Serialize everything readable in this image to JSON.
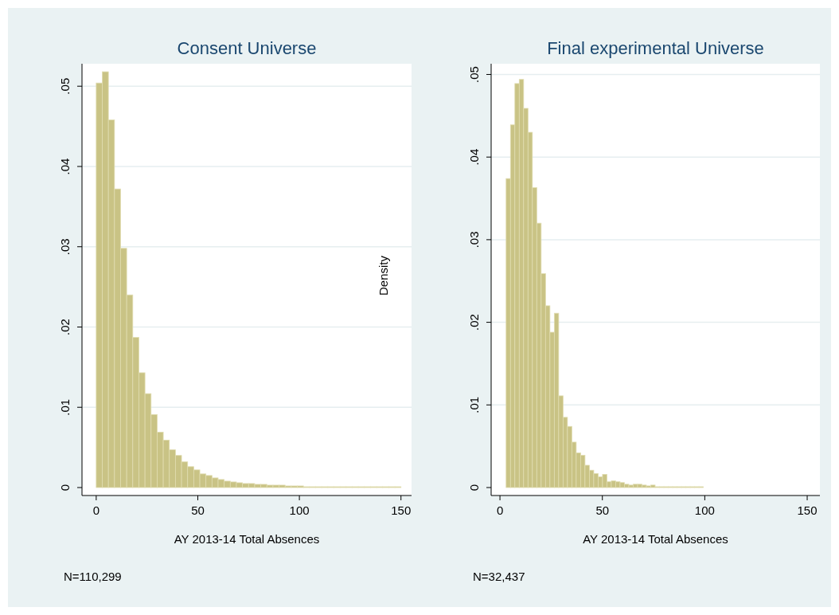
{
  "chart_data": [
    {
      "type": "histogram",
      "title": "Consent Universe",
      "xlabel": "AY 2013-14 Total Absences",
      "color": "#c9c385",
      "bins": [
        0,
        3,
        6,
        9,
        12,
        15,
        18,
        21,
        24,
        27,
        30,
        33,
        36,
        39,
        42,
        45,
        48,
        51,
        54,
        57,
        60,
        63,
        66,
        69,
        72,
        75,
        78,
        81,
        84,
        87,
        90,
        93,
        96,
        99,
        102,
        105,
        108,
        111,
        114,
        117,
        120,
        123,
        126,
        129,
        132,
        135,
        138,
        141,
        144,
        147,
        150
      ],
      "values": [
        0.0504,
        0.0518,
        0.0458,
        0.0372,
        0.0298,
        0.024,
        0.0187,
        0.0143,
        0.0117,
        0.0091,
        0.0069,
        0.0059,
        0.0047,
        0.004,
        0.0032,
        0.0026,
        0.0022,
        0.0017,
        0.0015,
        0.0012,
        0.001,
        0.0008,
        0.0007,
        0.0006,
        0.0005,
        0.0005,
        0.0004,
        0.0004,
        0.0003,
        0.0003,
        0.0003,
        0.0002,
        0.0002,
        0.0002,
        0.0001,
        0.0001,
        0.0001,
        0.0001,
        0.0001,
        0.0001,
        0.0001,
        0.0001,
        0.0001,
        0.0001,
        0.0001,
        0.0001,
        0.0001,
        0.0001,
        0.0001,
        0.0001
      ],
      "xlim": [
        -7,
        155.2
      ],
      "ylim": [
        0,
        0.0528
      ],
      "xticks": [
        0,
        50,
        100,
        150
      ],
      "yticks": [
        {
          "value": 0,
          "label": "0"
        },
        {
          "value": 0.01,
          "label": ".01"
        },
        {
          "value": 0.02,
          "label": ".02"
        },
        {
          "value": 0.03,
          "label": ".03"
        },
        {
          "value": 0.04,
          "label": ".04"
        },
        {
          "value": 0.05,
          "label": ".05"
        }
      ],
      "grid": "y",
      "annotations": [
        "N=110,299"
      ]
    },
    {
      "type": "histogram",
      "title": "Final experimental Universe",
      "xlabel": "AY 2013-14 Total Absences",
      "ylabel": "Density",
      "color": "#c9c385",
      "bins": [
        3,
        5.14,
        7.28,
        9.42,
        11.56,
        13.7,
        15.84,
        17.98,
        20.12,
        22.26,
        24.4,
        26.54,
        28.68,
        30.82,
        32.96,
        35.1,
        37.24,
        39.38,
        41.52,
        43.66,
        45.8,
        47.94,
        50.08,
        52.22,
        54.36,
        56.5,
        58.64,
        60.78,
        62.92,
        65.06,
        67.2,
        69.34,
        71.48,
        73.62,
        75.76,
        77.9,
        80.04,
        82.18,
        84.32,
        86.46,
        88.6,
        90.74,
        92.88,
        95.02,
        97.16,
        99.3
      ],
      "values": [
        0.0374,
        0.0439,
        0.0489,
        0.0494,
        0.0459,
        0.043,
        0.0363,
        0.032,
        0.0259,
        0.022,
        0.0188,
        0.0211,
        0.0111,
        0.0085,
        0.0074,
        0.0055,
        0.0042,
        0.0039,
        0.0027,
        0.0021,
        0.0017,
        0.0013,
        0.0016,
        0.0007,
        0.0008,
        0.0007,
        0.0006,
        0.0004,
        0.0003,
        0.0004,
        0.0004,
        0.0003,
        0.0002,
        0.0003,
        0.0001,
        0.0001,
        0.0001,
        0.0001,
        0.0001,
        0.0001,
        0.0001,
        0.0001,
        0.0001,
        0.0001,
        0.0001
      ],
      "xlim": [
        -4.3,
        156.2
      ],
      "ylim": [
        0,
        0.0513
      ],
      "xticks": [
        0,
        50,
        100,
        150
      ],
      "yticks": [
        {
          "value": 0,
          "label": "0"
        },
        {
          "value": 0.01,
          "label": ".01"
        },
        {
          "value": 0.02,
          "label": ".02"
        },
        {
          "value": 0.03,
          "label": ".03"
        },
        {
          "value": 0.04,
          "label": ".04"
        },
        {
          "value": 0.05,
          "label": ".05"
        }
      ],
      "grid": "y",
      "annotations": [
        "N=32,437"
      ]
    }
  ]
}
